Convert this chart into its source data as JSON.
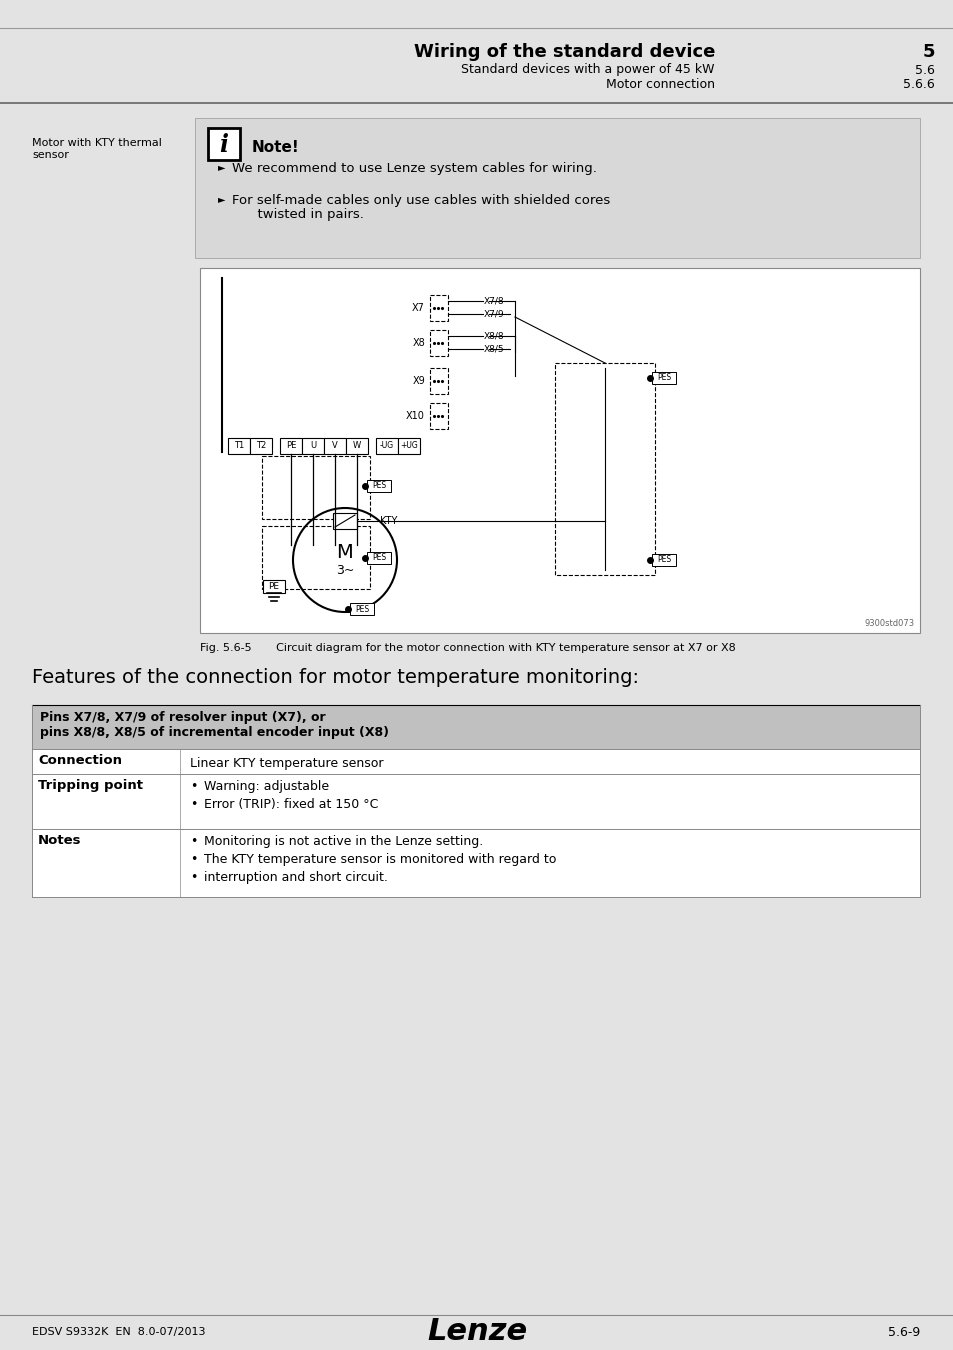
{
  "page_bg": "#e3e3e3",
  "content_bg": "#ffffff",
  "header": {
    "title": "Wiring of the standard device",
    "title_num": "5",
    "subtitle1": "Standard devices with a power of 45 kW",
    "subtitle1_num": "5.6",
    "subtitle2": "Motor connection",
    "subtitle2_num": "5.6.6"
  },
  "left_label": "Motor with KTY thermal\nsensor",
  "note": {
    "bg": "#d8d8d8",
    "title": "Note!",
    "bullets": [
      "We recommend to use Lenze system cables for wiring.",
      "For self-made cables only use cables with shielded cores\n      twisted in pairs."
    ]
  },
  "fig_caption": "Fig. 5.6-5       Circuit diagram for the motor connection with KTY temperature sensor at X7 or X8",
  "features_title": "Features of the connection for motor temperature monitoring:",
  "table": {
    "header_bg": "#c0c0c0",
    "header_text": "Pins X7/8, X7/9 of resolver input (X7), or\npins X8/8, X8/5 of incremental encoder input (X8)",
    "rows": [
      {
        "label": "Connection",
        "value": "Linear KTY temperature sensor",
        "bullet": false
      },
      {
        "label": "Tripping point",
        "value": "Warning: adjustable\nError (TRIP): fixed at 150 °C",
        "bullet": true
      },
      {
        "label": "Notes",
        "value": "Monitoring is not active in the Lenze setting.\nThe KTY temperature sensor is monitored with regard to\ninterruption and short circuit.",
        "bullet": true
      }
    ]
  },
  "footer": {
    "left": "EDSV S9332K  EN  8.0-07/2013",
    "center": "Lenze",
    "right": "5.6-9"
  }
}
